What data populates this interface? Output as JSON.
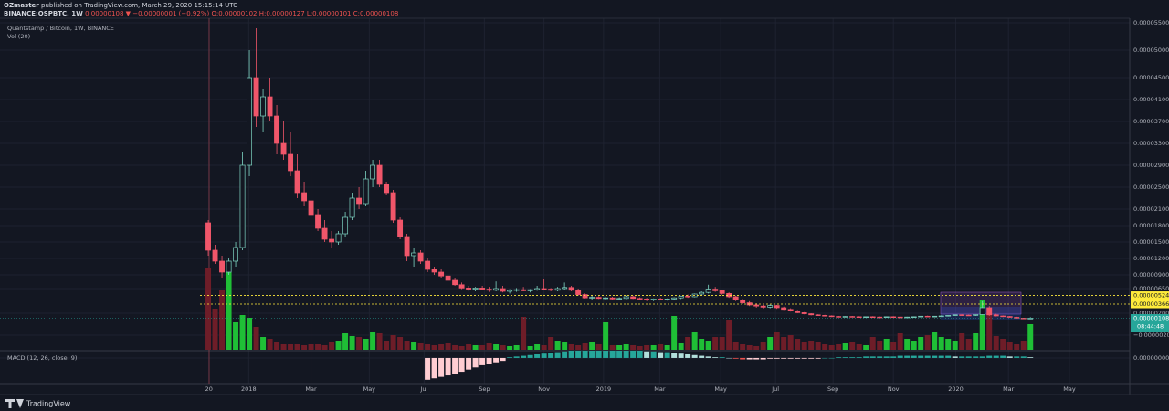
{
  "header": {
    "author": "OZmaster",
    "published": "published on TradingView.com, March 29, 2020 15:15:14 UTC",
    "symbol": "BINANCE:QSPBTC, 1W",
    "last": "0.00000108",
    "change": "▼ −0.00000001 (−0.92%)",
    "open": "O:0.00000102",
    "high": "H:0.00000127",
    "low": "L:0.00000101",
    "close": "C:0.00000108"
  },
  "footer": {
    "brand": "TradingView"
  },
  "chart_data": {
    "type": "candlestick",
    "title": "Quantstamp / Bitcoin, 1W, BINANCE",
    "volume_label": "Vol (20)",
    "macd_label": "MACD (12, 26, close, 9)",
    "countdown": "08:44:48",
    "colors": {
      "up": "#7fd6c4",
      "down": "#f0566a",
      "volume_up": "#1fbf36",
      "volume_down": "#6e1d28",
      "level": "#ffeb3b",
      "last": "#26a69a",
      "hist_up": "#26a69a",
      "hist_up_fading": "#b2dfdb",
      "hist_down": "#ef5350",
      "hist_down_fading": "#ffcdd2"
    },
    "grid": true,
    "xlim": [
      -30.4,
      134.5
    ],
    "xticks": [
      {
        "value": 0.1,
        "label": "20"
      },
      {
        "value": 5.9,
        "label": "2018"
      },
      {
        "value": 15,
        "label": "Mar"
      },
      {
        "value": 23.5,
        "label": "May"
      },
      {
        "value": 31.5,
        "label": "Jul"
      },
      {
        "value": 40.3,
        "label": "Sep"
      },
      {
        "value": 49,
        "label": "Nov"
      },
      {
        "value": 57.7,
        "label": "2019"
      },
      {
        "value": 65.9,
        "label": "Mar"
      },
      {
        "value": 74.8,
        "label": "May"
      },
      {
        "value": 82.8,
        "label": "Jul"
      },
      {
        "value": 91.2,
        "label": "Sep"
      },
      {
        "value": 100,
        "label": "Nov"
      },
      {
        "value": 109.1,
        "label": "2020"
      },
      {
        "value": 116.8,
        "label": "Mar"
      },
      {
        "value": 125.7,
        "label": "May"
      }
    ],
    "ylim": [
      -4.67e-06,
      5.617e-05
    ],
    "yticks": [
      {
        "value": 5.5e-05,
        "label": "0.00005500"
      },
      {
        "value": 5e-05,
        "label": "0.00005000"
      },
      {
        "value": 4.5e-05,
        "label": "0.00004500"
      },
      {
        "value": 4.1e-05,
        "label": "0.00004100"
      },
      {
        "value": 3.7e-05,
        "label": "0.00003700"
      },
      {
        "value": 3.3e-05,
        "label": "0.00003300"
      },
      {
        "value": 2.9e-05,
        "label": "0.00002900"
      },
      {
        "value": 2.5e-05,
        "label": "0.00002500"
      },
      {
        "value": 2.1e-05,
        "label": "0.00002100"
      },
      {
        "value": 1.8e-05,
        "label": "0.00001800"
      },
      {
        "value": 1.5e-05,
        "label": "0.00001500"
      },
      {
        "value": 1.2e-05,
        "label": "0.00001200"
      },
      {
        "value": 9e-06,
        "label": "0.00000900"
      },
      {
        "value": 6.5e-06,
        "label": "0.00000650"
      },
      {
        "value": 2e-06,
        "label": "0.00000200"
      },
      {
        "value": -2e-06,
        "label": "−0.00000200"
      }
    ],
    "price_lines": [
      5.24e-06,
      3.66e-06
    ],
    "open": [
      1.85e-05,
      1.35e-05,
      1.15e-05,
      9.5e-06,
      1.15e-05,
      1.4e-05,
      2.9e-05,
      4.5e-05,
      3.8e-05,
      4.15e-05,
      3.8e-05,
      3.3e-05,
      3.1e-05,
      2.8e-05,
      2.4e-05,
      2.25e-05,
      2e-05,
      1.75e-05,
      1.55e-05,
      1.5e-05,
      1.65e-05,
      1.95e-05,
      2.3e-05,
      2.2e-05,
      2.65e-05,
      2.9e-05,
      2.55e-05,
      2.4e-05,
      1.9e-05,
      1.6e-05,
      1.25e-05,
      1.3e-05,
      1.15e-05,
      1e-05,
      9.5e-06,
      8.8e-06,
      8e-06,
      7.2e-06,
      6.6e-06,
      6.4e-06,
      6.6e-06,
      6.4e-06,
      6.2e-06,
      6.5e-06,
      6e-06,
      6.2e-06,
      6.3e-06,
      6.1e-06,
      6.3e-06,
      6.5e-06,
      6.4e-06,
      6.2e-06,
      6.5e-06,
      6.7e-06,
      6.2e-06,
      5.4e-06,
      4.8e-06,
      4.9e-06,
      4.7e-06,
      4.8e-06,
      4.6e-06,
      4.7e-06,
      5e-06,
      4.7e-06,
      4.6e-06,
      4.4e-06,
      4.6e-06,
      4.5e-06,
      4.6e-06,
      4.8e-06,
      5.1e-06,
      5e-06,
      5.5e-06,
      5.8e-06,
      6.4e-06,
      6.1e-06,
      5.6e-06,
      5e-06,
      4.4e-06,
      3.9e-06,
      3.5e-06,
      3.3e-06,
      3.1e-06,
      3.4e-06,
      3e-06,
      2.7e-06,
      2.4e-06,
      2.1e-06,
      1.9e-06,
      1.7e-06,
      1.6e-06,
      1.5e-06,
      1.4e-06,
      1.35e-06,
      1.4e-06,
      1.35e-06,
      1.3e-06,
      1.35e-06,
      1.3e-06,
      1.25e-06,
      1.35e-06,
      1.3e-06,
      1.25e-06,
      1.3e-06,
      1.35e-06,
      1.45e-06,
      1.4e-06,
      1.45e-06,
      1.5e-06,
      1.6e-06,
      1.7e-06,
      1.65e-06,
      1.6e-06,
      1.75e-06,
      3e-06,
      1.7e-06,
      1.5e-06,
      1.4e-06,
      1.25e-06,
      1.1e-06,
      1.02e-06
    ],
    "high": [
      1.9e-05,
      1.45e-05,
      1.25e-05,
      1.2e-05,
      1.5e-05,
      3.15e-05,
      5e-05,
      5.4e-05,
      4.3e-05,
      4.5e-05,
      4e-05,
      3.7e-05,
      3.5e-05,
      3.1e-05,
      2.6e-05,
      2.35e-05,
      2.1e-05,
      1.9e-05,
      1.7e-05,
      1.7e-05,
      2.05e-05,
      2.4e-05,
      2.5e-05,
      2.8e-05,
      3e-05,
      3e-05,
      2.6e-05,
      2.45e-05,
      1.95e-05,
      1.65e-05,
      1.4e-05,
      1.35e-05,
      1.2e-05,
      1.05e-05,
      1e-05,
      9e-06,
      8.5e-06,
      7.6e-06,
      7e-06,
      6.8e-06,
      7e-06,
      6.8e-06,
      7.8e-06,
      7e-06,
      6.4e-06,
      6.6e-06,
      6.8e-06,
      6.4e-06,
      7e-06,
      8.2e-06,
      6.6e-06,
      6.8e-06,
      7.6e-06,
      7e-06,
      6.5e-06,
      5.6e-06,
      5.2e-06,
      5.1e-06,
      5e-06,
      5e-06,
      4.9e-06,
      5.2e-06,
      5.2e-06,
      4.9e-06,
      4.8e-06,
      4.7e-06,
      4.8e-06,
      4.7e-06,
      4.9e-06,
      5.2e-06,
      5.4e-06,
      5.6e-06,
      6e-06,
      7.2e-06,
      6.8e-06,
      6.3e-06,
      5.8e-06,
      5.2e-06,
      4.6e-06,
      4.2e-06,
      3.8e-06,
      3.5e-06,
      3.6e-06,
      3.5e-06,
      3.2e-06,
      2.9e-06,
      2.6e-06,
      2.2e-06,
      2e-06,
      1.8e-06,
      1.7e-06,
      1.6e-06,
      1.5e-06,
      1.45e-06,
      1.5e-06,
      1.45e-06,
      1.4e-06,
      1.45e-06,
      1.4e-06,
      1.4e-06,
      1.45e-06,
      1.4e-06,
      1.35e-06,
      1.4e-06,
      1.5e-06,
      1.55e-06,
      1.5e-06,
      1.6e-06,
      1.65e-06,
      1.75e-06,
      1.8e-06,
      1.75e-06,
      1.8e-06,
      4.2e-06,
      3.3e-06,
      1.9e-06,
      1.6e-06,
      1.5e-06,
      1.35e-06,
      1.15e-06,
      1.27e-06
    ],
    "low": [
      1.25e-05,
      1.1e-05,
      8.5e-06,
      9e-06,
      1.05e-05,
      1.35e-05,
      2.7e-05,
      3.6e-05,
      3.5e-05,
      3.7e-05,
      3.1e-05,
      3e-05,
      2.7e-05,
      2.3e-05,
      2.15e-05,
      1.95e-05,
      1.7e-05,
      1.5e-05,
      1.4e-05,
      1.45e-05,
      1.6e-05,
      1.9e-05,
      2.1e-05,
      2.15e-05,
      2.5e-05,
      2.5e-05,
      2.35e-05,
      1.85e-05,
      1.55e-05,
      1.15e-05,
      1.05e-05,
      1.1e-05,
      9.5e-06,
      9e-06,
      8.5e-06,
      7.8e-06,
      7e-06,
      6.4e-06,
      6.1e-06,
      6e-06,
      6.2e-06,
      5.9e-06,
      6e-06,
      5.8e-06,
      5.6e-06,
      5.9e-06,
      6e-06,
      5.8e-06,
      6.1e-06,
      6.2e-06,
      6e-06,
      6e-06,
      6.2e-06,
      6e-06,
      5.2e-06,
      4.7e-06,
      4.5e-06,
      4.6e-06,
      4.4e-06,
      4.5e-06,
      4.4e-06,
      4.6e-06,
      4.6e-06,
      4.4e-06,
      4.2e-06,
      4.2e-06,
      4.4e-06,
      4.3e-06,
      4.4e-06,
      4.6e-06,
      4.8e-06,
      4.9e-06,
      5.3e-06,
      5.6e-06,
      5.9e-06,
      5.4e-06,
      4.8e-06,
      4.2e-06,
      3.7e-06,
      3.3e-06,
      3e-06,
      2.9e-06,
      2.9e-06,
      2.8e-06,
      2.6e-06,
      2.3e-06,
      2e-06,
      1.8e-06,
      1.6e-06,
      1.5e-06,
      1.4e-06,
      1.3e-06,
      1.25e-06,
      1.25e-06,
      1.3e-06,
      1.25e-06,
      1.2e-06,
      1.25e-06,
      1.2e-06,
      1.2e-06,
      1.25e-06,
      1.2e-06,
      1.15e-06,
      1.2e-06,
      1.25e-06,
      1.3e-06,
      1.3e-06,
      1.35e-06,
      1.4e-06,
      1.5e-06,
      1.55e-06,
      1.5e-06,
      1.5e-06,
      1.65e-06,
      1.5e-06,
      1.4e-06,
      1.3e-06,
      1.2e-06,
      1e-06,
      9.5e-07,
      1.01e-06
    ],
    "close": [
      1.35e-05,
      1.15e-05,
      9.5e-06,
      1.15e-05,
      1.4e-05,
      2.9e-05,
      4.5e-05,
      3.8e-05,
      4.15e-05,
      3.8e-05,
      3.3e-05,
      3.1e-05,
      2.8e-05,
      2.4e-05,
      2.25e-05,
      2e-05,
      1.75e-05,
      1.55e-05,
      1.5e-05,
      1.65e-05,
      1.95e-05,
      2.3e-05,
      2.2e-05,
      2.65e-05,
      2.9e-05,
      2.55e-05,
      2.4e-05,
      1.9e-05,
      1.6e-05,
      1.25e-05,
      1.3e-05,
      1.15e-05,
      1e-05,
      9.5e-06,
      8.8e-06,
      8e-06,
      7.2e-06,
      6.6e-06,
      6.4e-06,
      6.6e-06,
      6.4e-06,
      6.2e-06,
      6.5e-06,
      6e-06,
      6.2e-06,
      6.3e-06,
      6.1e-06,
      6.3e-06,
      6.5e-06,
      6.4e-06,
      6.2e-06,
      6.5e-06,
      6.7e-06,
      6.2e-06,
      5.4e-06,
      4.8e-06,
      4.9e-06,
      4.7e-06,
      4.8e-06,
      4.6e-06,
      4.7e-06,
      5e-06,
      4.7e-06,
      4.6e-06,
      4.4e-06,
      4.6e-06,
      4.5e-06,
      4.6e-06,
      4.8e-06,
      5.1e-06,
      5e-06,
      5.5e-06,
      5.8e-06,
      6.4e-06,
      6.1e-06,
      5.6e-06,
      5e-06,
      4.4e-06,
      3.9e-06,
      3.5e-06,
      3.3e-06,
      3.1e-06,
      3.4e-06,
      3e-06,
      2.7e-06,
      2.4e-06,
      2.1e-06,
      1.9e-06,
      1.7e-06,
      1.6e-06,
      1.5e-06,
      1.4e-06,
      1.35e-06,
      1.4e-06,
      1.35e-06,
      1.3e-06,
      1.35e-06,
      1.3e-06,
      1.25e-06,
      1.35e-06,
      1.3e-06,
      1.25e-06,
      1.3e-06,
      1.35e-06,
      1.45e-06,
      1.4e-06,
      1.45e-06,
      1.5e-06,
      1.6e-06,
      1.7e-06,
      1.65e-06,
      1.6e-06,
      1.75e-06,
      3e-06,
      1.7e-06,
      1.5e-06,
      1.4e-06,
      1.25e-06,
      1.1e-06,
      1.09e-06,
      1.08e-06
    ],
    "volume": [
      90,
      45,
      65,
      85,
      30,
      38,
      35,
      25,
      14,
      12,
      8,
      6,
      6,
      6,
      5,
      6,
      6,
      5,
      8,
      10,
      18,
      15,
      14,
      12,
      20,
      18,
      10,
      16,
      14,
      10,
      8,
      7,
      6,
      5,
      6,
      7,
      5,
      4,
      6,
      5,
      5,
      7,
      6,
      5,
      4,
      5,
      36,
      4,
      6,
      5,
      14,
      10,
      8,
      6,
      5,
      7,
      8,
      6,
      30,
      5,
      5,
      6,
      5,
      4,
      5,
      5,
      6,
      5,
      37,
      7,
      14,
      20,
      12,
      10,
      14,
      14,
      33,
      8,
      6,
      5,
      4,
      8,
      14,
      20,
      14,
      16,
      12,
      8,
      10,
      8,
      6,
      5,
      6,
      7,
      8,
      6,
      5,
      14,
      10,
      12,
      8,
      18,
      12,
      10,
      14,
      16,
      20,
      14,
      12,
      10,
      18,
      12,
      18,
      55,
      40,
      15,
      12,
      8,
      6,
      10,
      28
    ],
    "macd_ylim": [
      -3.4e-07,
      1e-07
    ],
    "macd_yticks": [
      {
        "value": 0,
        "label": "0.00000000"
      }
    ],
    "macd_hist": [
      null,
      null,
      null,
      null,
      null,
      null,
      null,
      null,
      null,
      null,
      null,
      null,
      null,
      null,
      null,
      null,
      null,
      null,
      null,
      null,
      null,
      null,
      null,
      null,
      null,
      null,
      null,
      null,
      null,
      null,
      null,
      null,
      -3e-07,
      -2.8e-07,
      -2.6e-07,
      -2.4e-07,
      -2.2e-07,
      -1.9e-07,
      -1.6e-07,
      -1.3e-07,
      -1e-07,
      -8e-08,
      -6e-08,
      -4e-08,
      1e-08,
      2e-08,
      3e-08,
      4e-08,
      5e-08,
      6e-08,
      7e-08,
      8e-08,
      9e-08,
      1e-07,
      1e-07,
      1e-07,
      1e-07,
      1e-07,
      1e-07,
      1e-07,
      1e-07,
      1e-07,
      1e-07,
      1e-07,
      9e-08,
      9e-08,
      8e-08,
      8e-08,
      7e-08,
      6e-08,
      5e-08,
      4e-08,
      3e-08,
      2e-08,
      1e-08,
      1e-08,
      0,
      -1e-08,
      -2e-08,
      -2e-08,
      -2e-08,
      -2e-08,
      -1e-08,
      -1e-08,
      -1e-08,
      -1e-08,
      -1e-08,
      -1e-08,
      -1e-08,
      -1e-08,
      0,
      0,
      1e-08,
      1e-08,
      1e-08,
      1e-08,
      2e-08,
      2e-08,
      2e-08,
      2e-08,
      2e-08,
      3e-08,
      3e-08,
      3e-08,
      3e-08,
      3e-08,
      3e-08,
      3e-08,
      3e-08,
      2e-08,
      2e-08,
      2e-08,
      2e-08,
      2e-08,
      3e-08,
      3e-08,
      3e-08,
      2e-08,
      2e-08,
      2e-08,
      1e-08
    ]
  }
}
